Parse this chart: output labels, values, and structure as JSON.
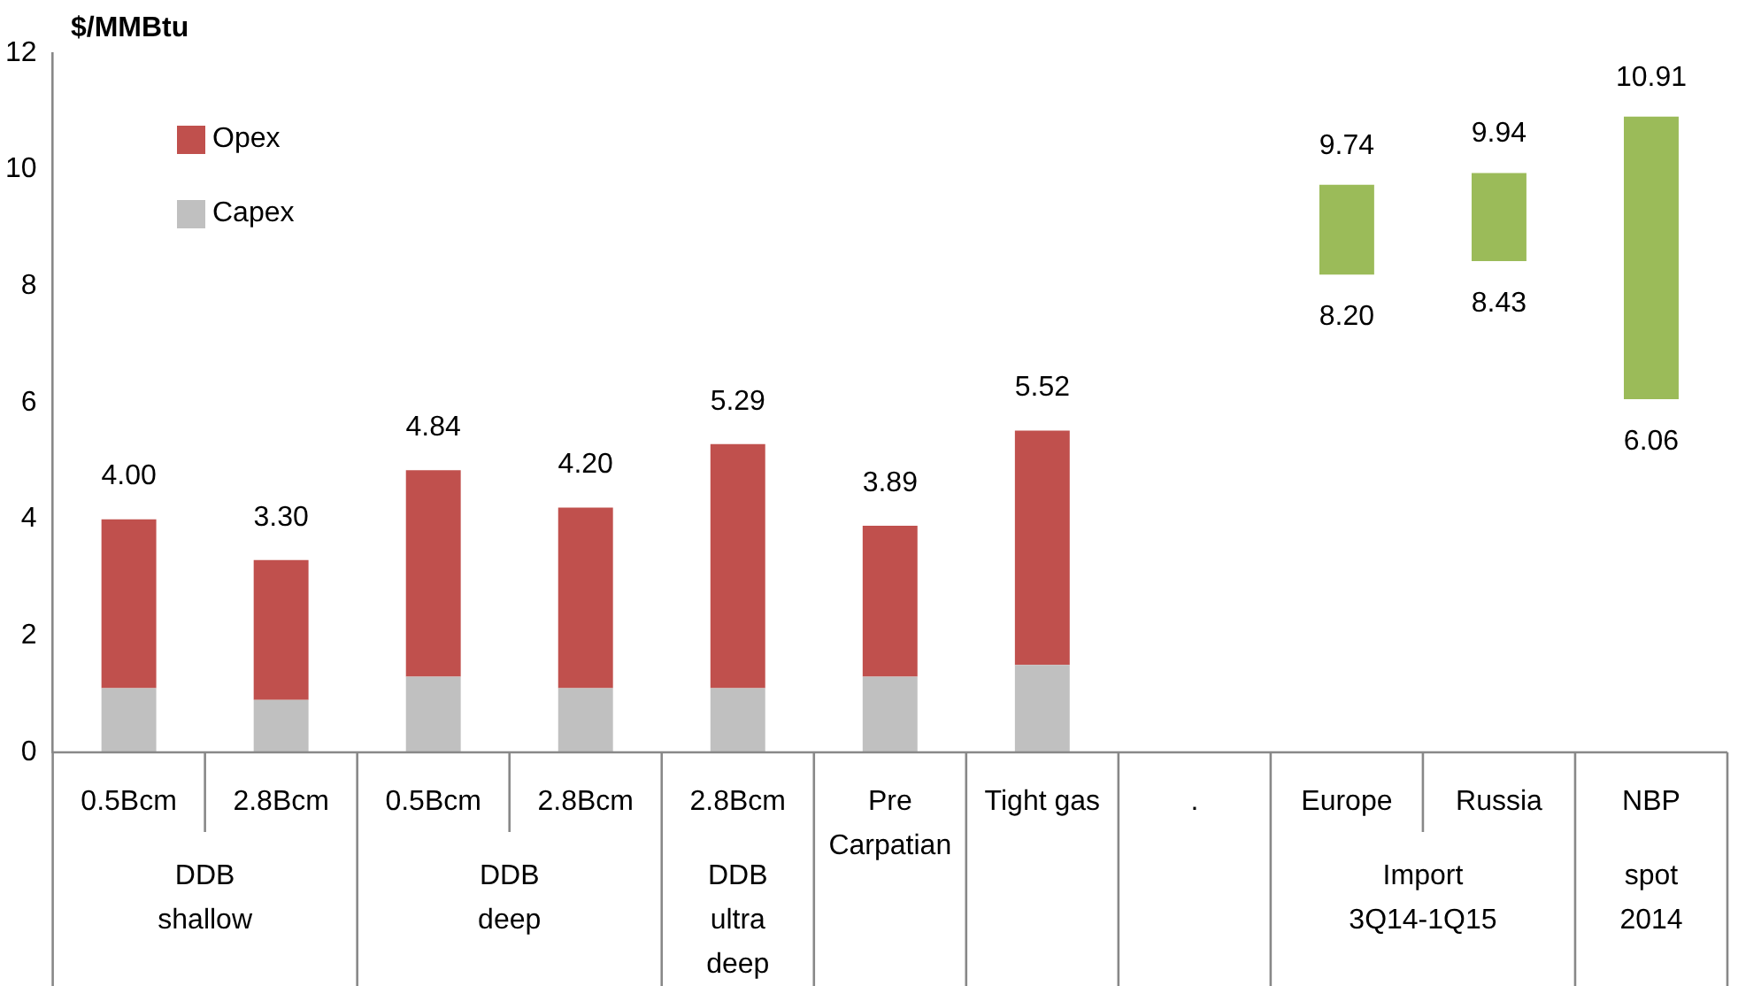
{
  "chart_data": {
    "type": "bar",
    "ylabel": "$/MMBtu",
    "categories": [
      "0.5Bcm",
      "2.8Bcm",
      "0.5Bcm",
      "2.8Bcm",
      "2.8Bcm",
      "Pre Carpatian",
      "Tight gas",
      ".",
      "Europe",
      "Russia",
      "NBP"
    ],
    "stacked": true,
    "series": [
      {
        "name": "Capex",
        "color": "#c0c0c0",
        "values": [
          1.1,
          0.9,
          1.3,
          1.1,
          1.1,
          1.3,
          1.5,
          null,
          null,
          null,
          null
        ]
      },
      {
        "name": "Opex",
        "color": "#c0504d",
        "values": [
          2.9,
          2.4,
          3.54,
          3.1,
          4.19,
          2.59,
          4.02,
          null,
          null,
          null,
          null
        ]
      },
      {
        "color": "#9bbb59",
        "values": [
          null,
          null,
          null,
          null,
          null,
          null,
          null,
          null,
          1.54,
          1.51,
          4.85
        ],
        "base": [
          null,
          null,
          null,
          null,
          null,
          null,
          null,
          null,
          8.2,
          8.43,
          6.06
        ]
      }
    ],
    "totals": [
      "4.00",
      "3.30",
      "4.84",
      "4.20",
      "5.29",
      "3.89",
      "5.52",
      null,
      null,
      null,
      null
    ],
    "annotations": [
      "DDB shallow",
      "DDB deep",
      "DDB ultra deep",
      "Import 3Q14-1Q15",
      "spot 2014",
      {
        "text": "9.74",
        "x": "Europe",
        "y": 9.74
      },
      {
        "text": "8.20",
        "x": "Europe",
        "y": 8.2
      },
      {
        "text": "9.94",
        "x": "Russia",
        "y": 9.94
      },
      {
        "text": "8.43",
        "x": "Russia",
        "y": 8.43
      },
      {
        "text": "10.91",
        "x": "NBP",
        "y": 10.91
      },
      {
        "text": "6.06",
        "x": "NBP",
        "y": 6.06
      }
    ],
    "ylim": [
      0,
      12
    ],
    "yticks": [
      0,
      2,
      4,
      6,
      8,
      10,
      12
    ],
    "grid": false,
    "legend": "top left"
  }
}
